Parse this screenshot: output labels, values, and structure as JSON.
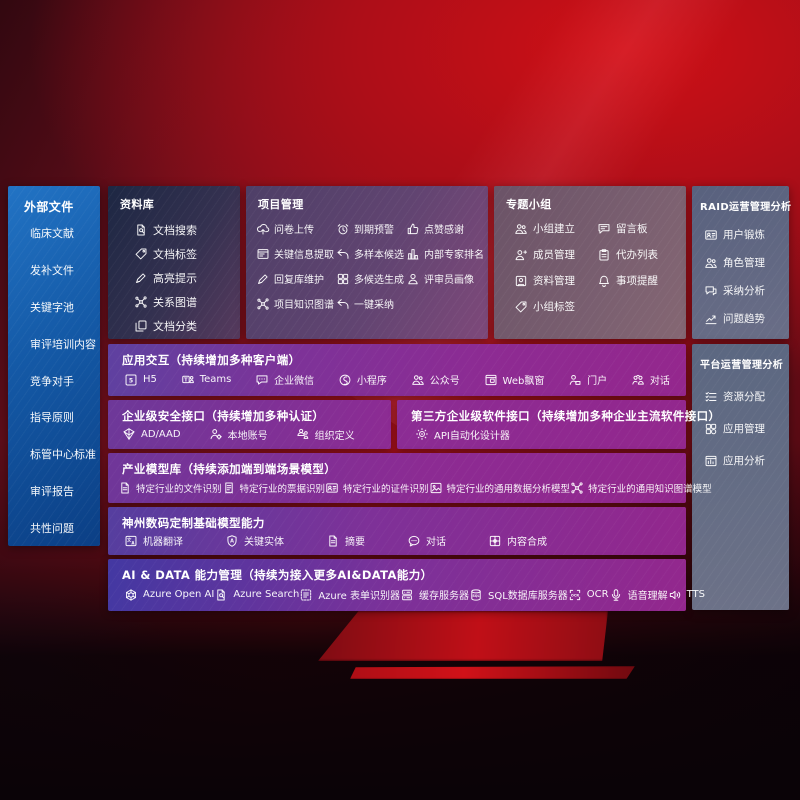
{
  "colors": {
    "background_red": "#a31019",
    "sidebar_blue": "#1459a6",
    "row_purple": "#93278d",
    "panel_slate": "#5b6781",
    "text": "#ffffff"
  },
  "sidebar": {
    "title": "外部文件",
    "items": [
      "临床文献",
      "发补文件",
      "关键字池",
      "审评培训内容",
      "竞争对手",
      "指导原则",
      "标管中心标准",
      "审评报告",
      "共性问题"
    ]
  },
  "panels": {
    "repository": {
      "title": "资料库",
      "items": [
        {
          "label": "文档搜索",
          "icon": "doc-search"
        },
        {
          "label": "文档标签",
          "icon": "tag"
        },
        {
          "label": "高亮提示",
          "icon": "pen"
        },
        {
          "label": "关系图谱",
          "icon": "network"
        },
        {
          "label": "文档分类",
          "icon": "docs"
        }
      ]
    },
    "project": {
      "title": "项目管理",
      "items": [
        {
          "label": "问卷上传",
          "icon": "cloud-upload"
        },
        {
          "label": "到期预警",
          "icon": "alarm"
        },
        {
          "label": "点赞感谢",
          "icon": "thumbs-up"
        },
        {
          "label": "关键信息提取",
          "icon": "window"
        },
        {
          "label": "多样本候选",
          "icon": "reply-arrow"
        },
        {
          "label": "内部专家排名",
          "icon": "rank-chart"
        },
        {
          "label": "回复库维护",
          "icon": "pen"
        },
        {
          "label": "多候选生成",
          "icon": "grid"
        },
        {
          "label": "评审员画像",
          "icon": "person"
        },
        {
          "label": "项目知识图谱",
          "icon": "network"
        },
        {
          "label": "一键采纳",
          "icon": "reply-arrow"
        }
      ]
    },
    "groups": {
      "title": "专题小组",
      "items": [
        {
          "label": "小组建立",
          "icon": "people"
        },
        {
          "label": "留言板",
          "icon": "bbs-chat"
        },
        {
          "label": "成员管理",
          "icon": "person-add"
        },
        {
          "label": "代办列表",
          "icon": "clipboard"
        },
        {
          "label": "资料管理",
          "icon": "album"
        },
        {
          "label": "事项提醒",
          "icon": "bell"
        },
        {
          "label": "小组标签",
          "icon": "tag"
        }
      ]
    },
    "raid": {
      "title": "RAID运营管理分析",
      "items": [
        {
          "label": "用户锻炼",
          "icon": "id-card"
        },
        {
          "label": "角色管理",
          "icon": "people"
        },
        {
          "label": "采纳分析",
          "icon": "chat-analysis"
        },
        {
          "label": "问题趋势",
          "icon": "trend-chart"
        }
      ]
    },
    "platform": {
      "title": "平台运营管理分析",
      "items": [
        {
          "label": "资源分配",
          "icon": "checklist"
        },
        {
          "label": "应用管理",
          "icon": "app-grid"
        },
        {
          "label": "应用分析",
          "icon": "app-chart"
        }
      ]
    }
  },
  "rows": {
    "interaction": {
      "title": "应用交互（持续增加多种客户端）",
      "items": [
        {
          "label": "H5",
          "icon": "h5"
        },
        {
          "label": "Teams",
          "icon": "teams"
        },
        {
          "label": "企业微信",
          "icon": "wechat-chat"
        },
        {
          "label": "小程序",
          "icon": "miniprogram"
        },
        {
          "label": "公众号",
          "icon": "people"
        },
        {
          "label": "Web飘窗",
          "icon": "browser-window"
        },
        {
          "label": "门户",
          "icon": "portal-person"
        },
        {
          "label": "对话",
          "icon": "dialog-people"
        }
      ]
    },
    "security": {
      "title": "企业级安全接口（持续增加多种认证）",
      "items": [
        {
          "label": "AD/AAD",
          "icon": "ad-shield"
        },
        {
          "label": "本地账号",
          "icon": "person-gear"
        },
        {
          "label": "组织定义",
          "icon": "org-people"
        }
      ]
    },
    "thirdparty": {
      "title": "第三方企业级软件接口（持续增加多种企业主流软件接口）",
      "items": [
        {
          "label": "API自动化设计器",
          "icon": "api-gear"
        }
      ]
    },
    "models": {
      "title": "产业模型库（持续添加端到端场景模型）",
      "items": [
        {
          "label": "特定行业的文件识别",
          "icon": "doc"
        },
        {
          "label": "特定行业的票据识别",
          "icon": "receipt"
        },
        {
          "label": "特定行业的证件识别",
          "icon": "id-card"
        },
        {
          "label": "特定行业的通用数据分析模型",
          "icon": "image-chart"
        },
        {
          "label": "特定行业的通用知识图谱模型",
          "icon": "network"
        }
      ]
    },
    "base": {
      "title": "神州数码定制基础模型能力",
      "items": [
        {
          "label": "机器翻译",
          "icon": "translate"
        },
        {
          "label": "关键实体",
          "icon": "entity-shield"
        },
        {
          "label": "摘要",
          "icon": "doc"
        },
        {
          "label": "对话",
          "icon": "chat-dots"
        },
        {
          "label": "内容合成",
          "icon": "compose-grid"
        }
      ]
    },
    "aidata": {
      "title": "AI & DATA 能力管理（持续为接入更多AI&DATA能力）",
      "items": [
        {
          "label": "Azure Open AI",
          "icon": "openai"
        },
        {
          "label": "Azure Search",
          "icon": "doc-search"
        },
        {
          "label": "Azure 表单识别器",
          "icon": "form"
        },
        {
          "label": "缓存服务器",
          "icon": "cache-server"
        },
        {
          "label": "SQL数据库服务器",
          "icon": "sql-db"
        },
        {
          "label": "OCR",
          "icon": "ocr-scan"
        },
        {
          "label": "语音理解",
          "icon": "mic"
        },
        {
          "label": "TTS",
          "icon": "tts-speaker"
        }
      ]
    }
  }
}
